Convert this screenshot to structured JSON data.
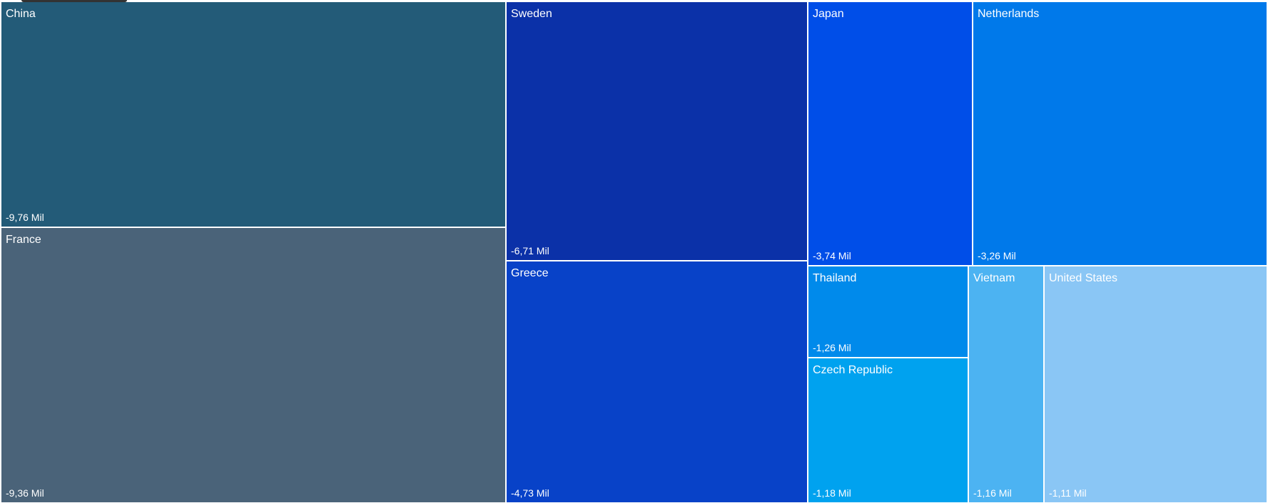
{
  "chart_data": {
    "type": "treemap",
    "unit": "Mil",
    "items": [
      {
        "name": "China",
        "value": -9.76,
        "label": "-9,76 Mil",
        "color": "#235b78"
      },
      {
        "name": "France",
        "value": -9.36,
        "label": "-9,36 Mil",
        "color": "#4a6379"
      },
      {
        "name": "Sweden",
        "value": -6.71,
        "label": "-6,71 Mil",
        "color": "#0b31a8"
      },
      {
        "name": "Greece",
        "value": -4.73,
        "label": "-4,73 Mil",
        "color": "#0842c8"
      },
      {
        "name": "Japan",
        "value": -3.74,
        "label": "-3,74 Mil",
        "color": "#004ee8"
      },
      {
        "name": "Netherlands",
        "value": -3.26,
        "label": "-3,26 Mil",
        "color": "#0079ea"
      },
      {
        "name": "Thailand",
        "value": -1.26,
        "label": "-1,26 Mil",
        "color": "#008aeb"
      },
      {
        "name": "Czech Republic",
        "value": -1.18,
        "label": "-1,18 Mil",
        "color": "#00a2ef"
      },
      {
        "name": "Vietnam",
        "value": -1.16,
        "label": "-1,16 Mil",
        "color": "#4cb3f2"
      },
      {
        "name": "United States",
        "value": -1.11,
        "label": "-1,11 Mil",
        "color": "#8ac6f5"
      }
    ]
  }
}
